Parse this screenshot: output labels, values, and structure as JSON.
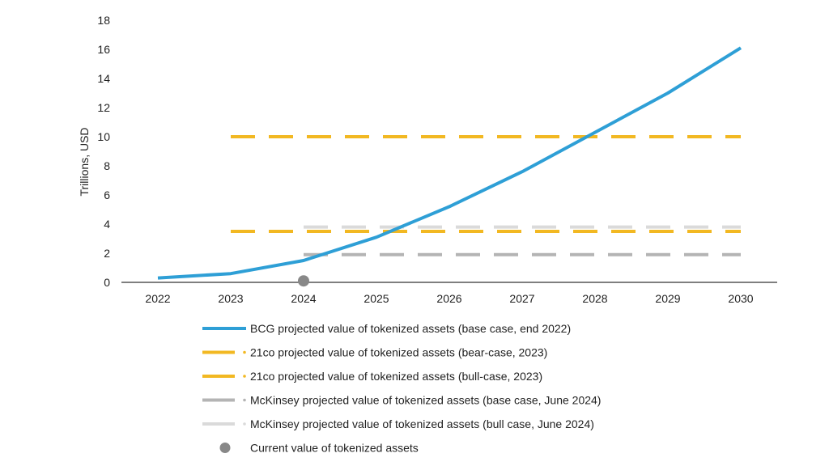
{
  "chart_data": {
    "type": "line",
    "title": "",
    "xlabel": "",
    "ylabel": "Trillions, USD",
    "x": [
      2022,
      2023,
      2024,
      2025,
      2026,
      2027,
      2028,
      2029,
      2030
    ],
    "xlim": [
      2022,
      2030
    ],
    "ylim": [
      0,
      18
    ],
    "yticks": [
      0,
      2,
      4,
      6,
      8,
      10,
      12,
      14,
      16,
      18
    ],
    "grid": false,
    "legend_position": "bottom",
    "series": [
      {
        "name": "BCG projected value of tokenized assets (base case, end 2022)",
        "style": "solid",
        "color": "#2e9fd6",
        "points": [
          [
            2022,
            0.3
          ],
          [
            2023,
            0.6
          ],
          [
            2024,
            1.5
          ],
          [
            2025,
            3.1
          ],
          [
            2026,
            5.2
          ],
          [
            2027,
            7.6
          ],
          [
            2028,
            10.3
          ],
          [
            2029,
            13.0
          ],
          [
            2030,
            16.1
          ]
        ]
      },
      {
        "name": "21co projected value of tokenized assets (bear-case, 2023)",
        "style": "dashed",
        "color": "#f2b822",
        "points": [
          [
            2023,
            3.5
          ],
          [
            2030,
            3.5
          ]
        ]
      },
      {
        "name": "21co projected value of tokenized assets (bull-case, 2023)",
        "style": "dashed",
        "color": "#f2b822",
        "points": [
          [
            2023,
            10
          ],
          [
            2030,
            10
          ]
        ]
      },
      {
        "name": "McKinsey projected value of tokenized assets (base case, June 2024)",
        "style": "dashed",
        "color": "#b4b4b4",
        "points": [
          [
            2024,
            1.9
          ],
          [
            2030,
            1.9
          ]
        ]
      },
      {
        "name": "McKinsey projected value of tokenized assets (bull case, June 2024)",
        "style": "dashed",
        "color": "#dadada",
        "points": [
          [
            2024,
            3.8
          ],
          [
            2030,
            3.8
          ]
        ]
      },
      {
        "name": "Current value of tokenized assets",
        "style": "marker",
        "color": "#888888",
        "points": [
          [
            2024,
            0.1
          ]
        ]
      }
    ]
  }
}
